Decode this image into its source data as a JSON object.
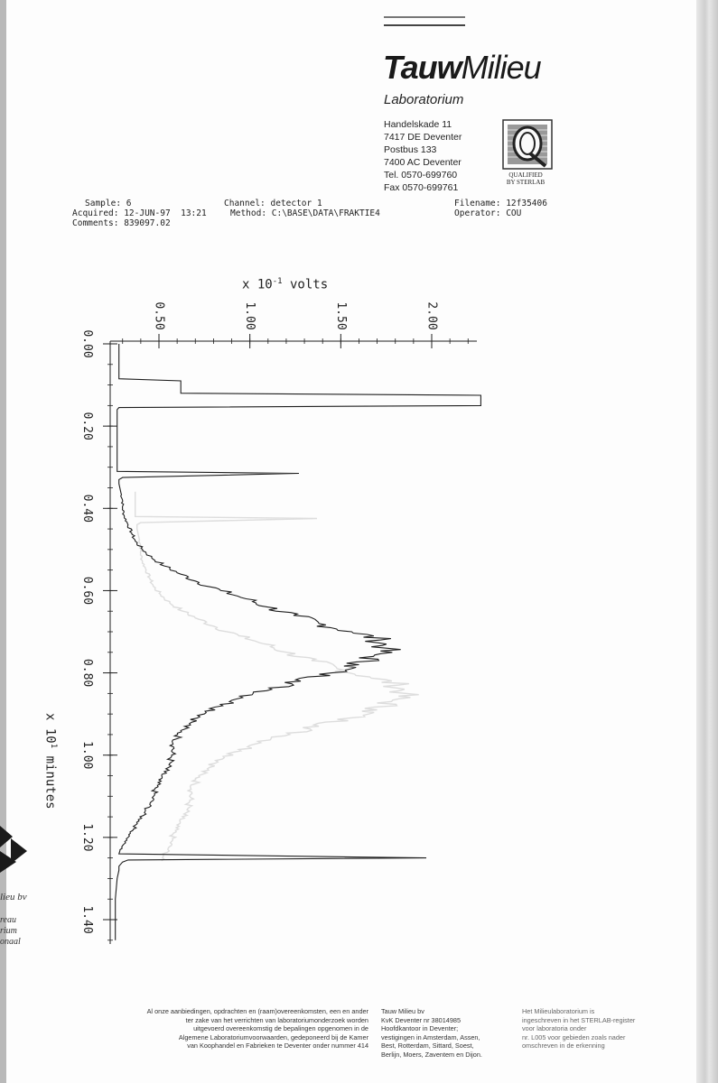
{
  "header": {
    "logo_bold": "Tauw",
    "logo_light": "Milieu",
    "subtitle": "Laboratorium",
    "address": [
      "Handelskade 11",
      "7417 DE Deventer",
      "Postbus 133",
      "7400 AC Deventer",
      "Tel. 0570-699760",
      "Fax 0570-699761"
    ],
    "qualified_lines": [
      "QUALIFIED",
      "BY STERLAB"
    ]
  },
  "sample_info": {
    "sample": "Sample: 6",
    "acquired": "Acquired: 12-JUN-97  13:21",
    "comments": "Comments: 839097.02",
    "channel": "Channel: detector 1",
    "method": "Method: C:\\BASE\\DATA\\FRAKTIE4",
    "filename": "Filename: 12f35406",
    "operator": "Operator: COU"
  },
  "chart_data": {
    "type": "line",
    "ylabel_prefix": "x 10",
    "ylabel_exp": "-1",
    "ylabel_unit": " volts",
    "xlabel_prefix": "x 10",
    "xlabel_exp": "1",
    "xlabel_unit": " minutes",
    "x_ticks": [
      "0.00",
      "0.20",
      "0.40",
      "0.60",
      "0.80",
      "1.00",
      "1.20",
      "1.40"
    ],
    "y_ticks": [
      "0.50",
      "1.00",
      "1.50",
      "2.00"
    ],
    "xlim": [
      0,
      1.45
    ],
    "ylim": [
      0.2,
      2.3
    ],
    "grid": false,
    "series": [
      {
        "x": [
          0.0,
          0.06,
          0.085,
          0.09,
          0.12,
          0.125,
          0.15,
          0.155,
          0.16,
          0.17,
          0.19,
          0.2,
          0.25,
          0.3,
          0.31,
          0.315,
          0.325,
          0.33,
          0.34,
          0.36,
          0.38,
          0.4,
          0.42,
          0.44,
          0.46,
          0.48,
          0.5,
          0.52,
          0.54,
          0.56,
          0.58,
          0.6,
          0.62,
          0.64,
          0.66,
          0.68,
          0.7,
          0.72,
          0.74,
          0.76,
          0.78,
          0.8,
          0.82,
          0.84,
          0.86,
          0.88,
          0.9,
          0.92,
          0.94,
          0.96,
          0.98,
          1.0,
          1.02,
          1.04,
          1.06,
          1.08,
          1.1,
          1.12,
          1.14,
          1.16,
          1.18,
          1.2,
          1.22,
          1.24,
          1.25,
          1.255,
          1.26,
          1.27,
          1.28,
          1.3,
          1.35,
          1.4,
          1.45
        ],
        "y": [
          0.28,
          0.28,
          0.28,
          0.62,
          0.62,
          2.27,
          2.27,
          0.28,
          0.27,
          0.27,
          0.27,
          0.27,
          0.27,
          0.27,
          0.27,
          1.27,
          0.3,
          0.28,
          0.28,
          0.29,
          0.3,
          0.3,
          0.31,
          0.33,
          0.35,
          0.37,
          0.41,
          0.46,
          0.53,
          0.62,
          0.72,
          0.84,
          0.98,
          1.1,
          1.24,
          1.38,
          1.56,
          1.72,
          1.75,
          1.68,
          1.6,
          1.45,
          1.28,
          1.12,
          0.96,
          0.85,
          0.75,
          0.68,
          0.62,
          0.6,
          0.58,
          0.57,
          0.56,
          0.53,
          0.5,
          0.48,
          0.47,
          0.45,
          0.42,
          0.39,
          0.36,
          0.33,
          0.3,
          0.28,
          1.97,
          0.33,
          0.3,
          0.28,
          0.28,
          0.27,
          0.26,
          0.26,
          0.26
        ]
      }
    ]
  },
  "footer": {
    "col1": [
      "Al onze aanbiedingen, opdrachten en (raam)overeenkomsten, een en ander",
      "ter zake van het verrichten van laboratoriumonderzoek worden",
      "uitgevoerd overeenkomstig de bepalingen opgenomen in de",
      "Algemene Laboratoriumvoorwaarden, gedeponeerd bij de Kamer",
      "van Koophandel en Fabrieken te Deventer onder nummer 414"
    ],
    "col2": [
      "Tauw Milieu bv",
      "KvK Deventer nr 38014985",
      "Hoofdkantoor in Deventer;",
      "vestigingen in Amsterdam, Assen,",
      "Best, Rotterdam, Sittard, Soest,",
      "Berlijn, Moers, Zaventem en Dijon."
    ],
    "col3": [
      "Het Milieulaboratorium is",
      "ingeschreven in het STERLAB-register",
      "voor laboratoria onder",
      "nr. L005 voor gebieden zoals nader",
      "omschreven in de erkenning"
    ]
  },
  "side": {
    "lines": [
      "lieu bv",
      "reau",
      "rium",
      "onaal"
    ]
  },
  "colors": {
    "ink": "#1f1f1f",
    "bleed": "#cfcfcf"
  }
}
